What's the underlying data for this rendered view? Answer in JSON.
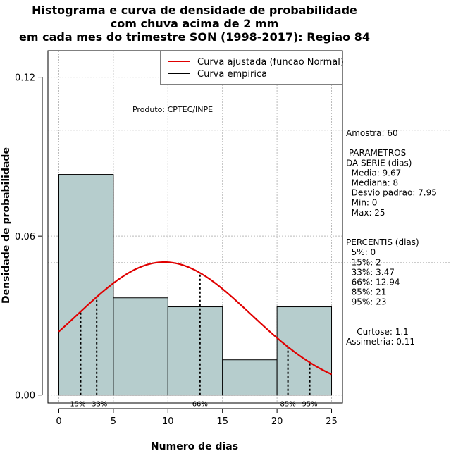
{
  "chart_data": {
    "type": "histogram",
    "title_lines": [
      "Histograma e curva de densidade de probabilidade",
      "com chuva acima de 2 mm",
      "em cada mes do trimestre SON (1998-2017): Regiao 84"
    ],
    "xlabel": "Numero de dias",
    "ylabel": "Densidade de probabilidade",
    "xlim": [
      -1,
      26
    ],
    "ylim": [
      -0.003,
      0.13
    ],
    "x_ticks": [
      0,
      5,
      10,
      15,
      20,
      25
    ],
    "x_tick_labels": [
      "0",
      "5",
      "10",
      "15",
      "20",
      "25"
    ],
    "y_ticks": [
      0.0,
      0.06,
      0.12
    ],
    "y_tick_labels": [
      "0.00",
      "0.06",
      "0.12"
    ],
    "bins": [
      {
        "start": 0,
        "end": 5,
        "density": 0.0833
      },
      {
        "start": 5,
        "end": 10,
        "density": 0.0367
      },
      {
        "start": 10,
        "end": 15,
        "density": 0.0333
      },
      {
        "start": 15,
        "end": 20,
        "density": 0.0133
      },
      {
        "start": 20,
        "end": 25,
        "density": 0.0333
      }
    ],
    "normal_fit": {
      "mean": 9.67,
      "sd": 7.95,
      "x_from": 0,
      "x_to": 25
    },
    "percentile_lines": [
      {
        "x": 2,
        "label": "15%"
      },
      {
        "x": 3.47,
        "label": "33%"
      },
      {
        "x": 12.94,
        "label": "66%"
      },
      {
        "x": 21,
        "label": "85%"
      },
      {
        "x": 23,
        "label": "95%"
      }
    ],
    "legend": {
      "position": "top-right",
      "entries": [
        {
          "label": "Curva ajustada (funcao Normal)",
          "color": "#e00000"
        },
        {
          "label": "Curva empirica",
          "color": "#000000"
        }
      ]
    },
    "grid": true,
    "colors": {
      "bar_fill": "#b6cdcd",
      "fit_line": "#e00000",
      "grid": "#bbbbbb"
    }
  },
  "annotations": {
    "produto": "Produto: CPTEC/INPE",
    "stats": [
      "Amostra: 60",
      "",
      " PARAMETROS",
      "DA SERIE (dias)",
      "  Media: 9.67",
      "  Mediana: 8",
      "  Desvio padrao: 7.95",
      "  Min: 0",
      "  Max: 25",
      "",
      "",
      "PERCENTIS (dias)",
      "  5%: 0",
      "  15%: 2",
      "  33%: 3.47",
      "  66%: 12.94",
      "  85%: 21",
      "  95%: 23",
      "",
      "",
      "    Curtose: 1.1",
      "Assimetria: 0.11"
    ]
  }
}
